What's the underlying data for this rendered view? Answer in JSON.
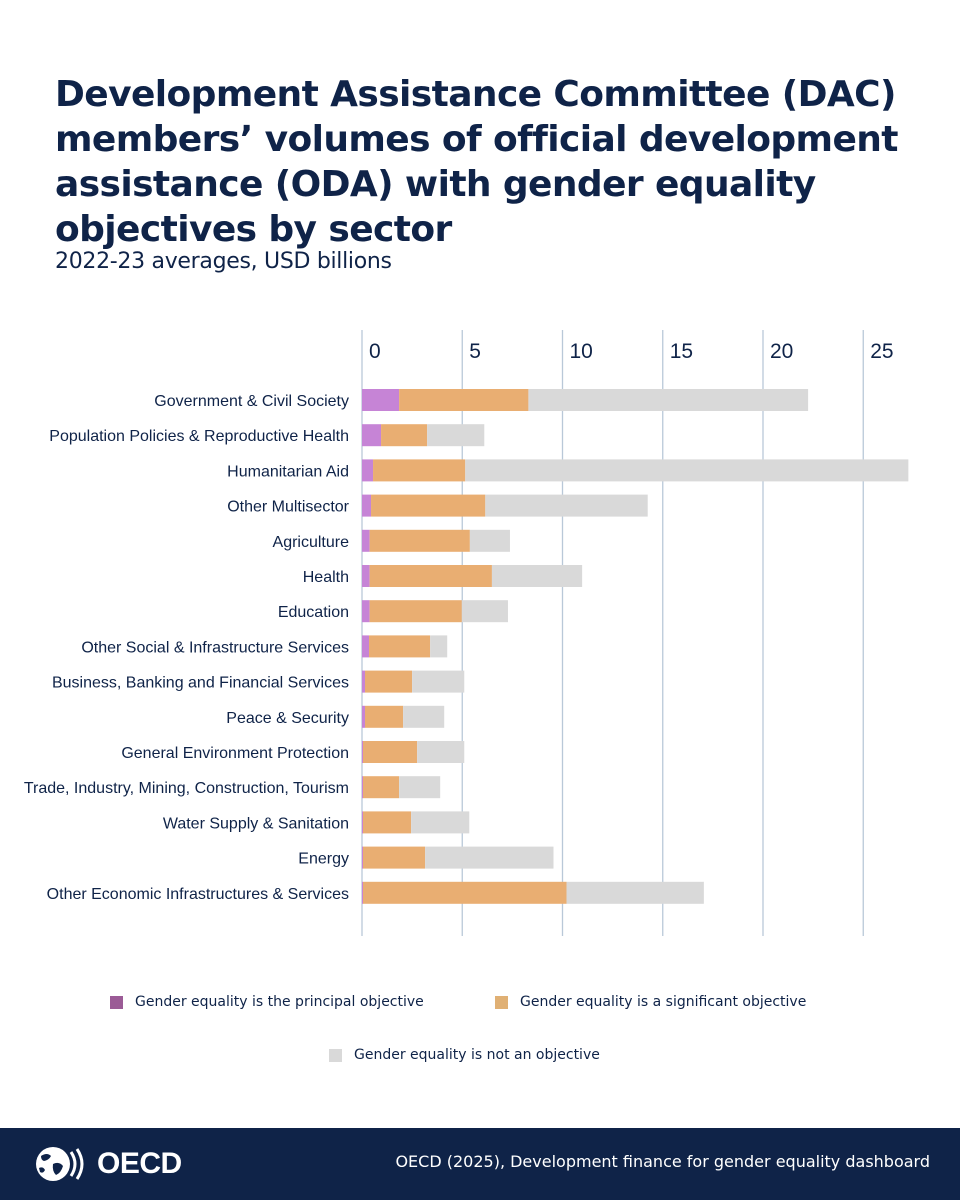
{
  "title": "Development Assistance Committee (DAC) members’ volumes of official development assistance (ODA) with gender equality objectives by sector",
  "subtitle": "2022-23 averages, USD billions",
  "chart_data": {
    "type": "bar",
    "orientation": "horizontal",
    "stacked": true,
    "title": "Development Assistance Committee (DAC) members’ volumes of official development assistance (ODA) with gender equality objectives by sector",
    "subtitle": "2022-23 averages, USD billions",
    "xlim": [
      0,
      27
    ],
    "xticks": [
      "0",
      "5",
      "10",
      "15",
      "20",
      "25"
    ],
    "xtick_values": [
      0,
      5,
      10,
      15,
      20,
      25
    ],
    "grid": "vertical",
    "legend_position": "bottom",
    "categories": [
      "Government & Civil Society",
      "Population Policies & Reproductive Health",
      "Humanitarian Aid",
      "Other Multisector",
      "Agriculture",
      "Health",
      "Education",
      "Other Social & Infrastructure Services",
      "Business, Banking and Financial Services",
      "Peace & Security",
      "General Environment Protection",
      "Trade, Industry, Mining, Construction, Tourism",
      "Water Supply & Sanitation",
      "Energy",
      "Other Economic Infrastructures & Services"
    ],
    "series": [
      {
        "name": "Gender equality is the principal objective",
        "color": "#c684d6",
        "values": [
          1.85,
          0.95,
          0.55,
          0.45,
          0.38,
          0.38,
          0.38,
          0.35,
          0.15,
          0.15,
          0.05,
          0.05,
          0.05,
          0.05,
          0.05
        ]
      },
      {
        "name": "Gender equality is a significant objective",
        "color": "#e9ae72",
        "values": [
          6.45,
          2.3,
          4.6,
          5.7,
          5.0,
          6.1,
          4.6,
          3.05,
          2.35,
          1.9,
          2.7,
          1.8,
          2.4,
          3.1,
          10.15
        ]
      },
      {
        "name": "Gender equality is not an objective",
        "color": "#d9d9d9",
        "values": [
          13.95,
          2.85,
          22.1,
          8.1,
          2.0,
          4.5,
          2.3,
          0.85,
          2.6,
          2.05,
          2.35,
          2.05,
          2.9,
          6.4,
          6.85
        ]
      }
    ]
  },
  "legend": {
    "principal": "Gender equality is the principal objective",
    "significant": "Gender equality is a significant objective",
    "not_objective": "Gender equality is not an objective"
  },
  "colors": {
    "principal_swatch": "#9b5b96",
    "significant_swatch": "#e0b074",
    "not_objective_swatch": "#d9d9d9",
    "footer_background": "#0f2348",
    "title_text": "#0f2348",
    "gridline": "#b9c8d8"
  },
  "footer": {
    "logo_text": "OECD",
    "logo_icon": "oecd-globe-icon",
    "source": "OECD (2025), Development finance for gender equality dashboard"
  }
}
